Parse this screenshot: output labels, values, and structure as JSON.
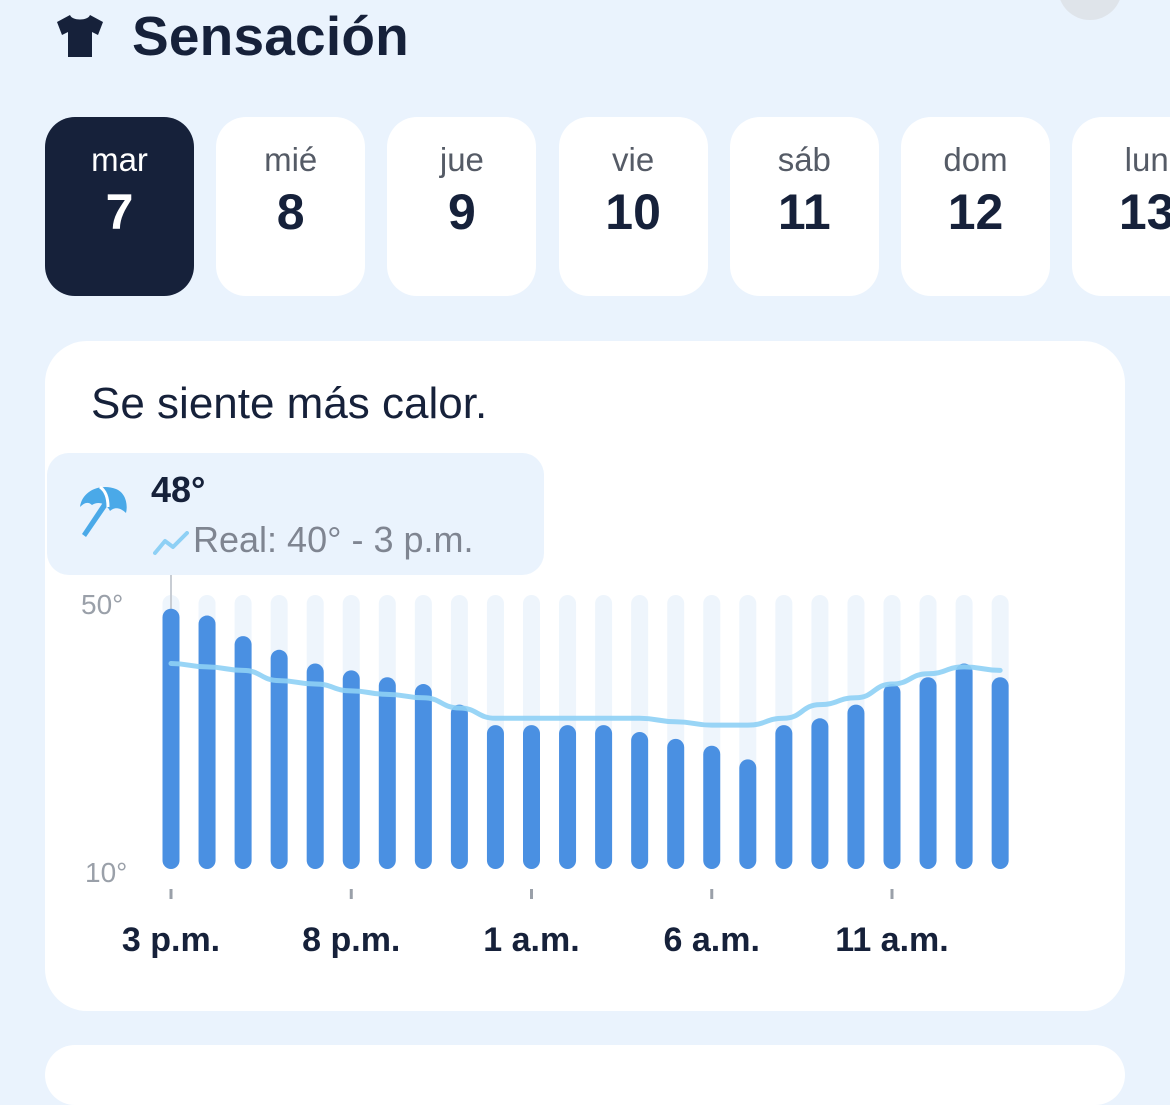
{
  "header": {
    "icon": "tshirt-icon",
    "title": "Sensación"
  },
  "days": [
    {
      "name": "mar",
      "num": "7",
      "selected": true,
      "dot": true
    },
    {
      "name": "mié",
      "num": "8",
      "selected": false,
      "dot": false
    },
    {
      "name": "jue",
      "num": "9",
      "selected": false,
      "dot": false
    },
    {
      "name": "vie",
      "num": "10",
      "selected": false,
      "dot": false
    },
    {
      "name": "sáb",
      "num": "11",
      "selected": false,
      "dot": true
    },
    {
      "name": "dom",
      "num": "12",
      "selected": false,
      "dot": true
    },
    {
      "name": "lun",
      "num": "13",
      "selected": false,
      "dot": true
    }
  ],
  "card": {
    "subtitle": "Se siente más calor.",
    "selected_point": {
      "icon": "umbrella-icon",
      "value": "48°",
      "trend_icon": "trend-line-icon",
      "real_text": "Real: 40° - 3 p.m."
    }
  },
  "colors": {
    "background": "#eaf3fd",
    "selected_day": "#16213a",
    "dot": "#f4565a",
    "bar": "#4a90e2",
    "bar_track": "#eef5fc",
    "real_line": "#8ed0f5"
  },
  "chart_data": {
    "type": "bar",
    "title": "",
    "ylim": [
      10,
      50
    ],
    "y_tick_labels": [
      "50°",
      "10°"
    ],
    "x_tick_labels": [
      "3 p.m.",
      "8 p.m.",
      "1 a.m.",
      "6 a.m.",
      "11 a.m."
    ],
    "x": [
      "3 p.m.",
      "4 p.m.",
      "5 p.m.",
      "6 p.m.",
      "7 p.m.",
      "8 p.m.",
      "9 p.m.",
      "10 p.m.",
      "11 p.m.",
      "12 a.m.",
      "1 a.m.",
      "2 a.m.",
      "3 a.m.",
      "4 a.m.",
      "5 a.m.",
      "6 a.m.",
      "7 a.m.",
      "8 a.m.",
      "9 a.m.",
      "10 a.m.",
      "11 a.m.",
      "12 p.m.",
      "1 p.m.",
      "2 p.m."
    ],
    "series": [
      {
        "values": [
          48,
          47,
          44,
          42,
          40,
          39,
          38,
          37,
          34,
          31,
          31,
          31,
          31,
          30,
          29,
          28,
          26,
          31,
          32,
          34,
          37,
          38,
          40,
          38
        ]
      },
      {
        "values": [
          40,
          39.5,
          39,
          37.5,
          37,
          36,
          35.5,
          35,
          33.5,
          32,
          32,
          32,
          32,
          32,
          31.5,
          31,
          31,
          32,
          34,
          35,
          37,
          38.5,
          39.5,
          39
        ]
      }
    ]
  }
}
